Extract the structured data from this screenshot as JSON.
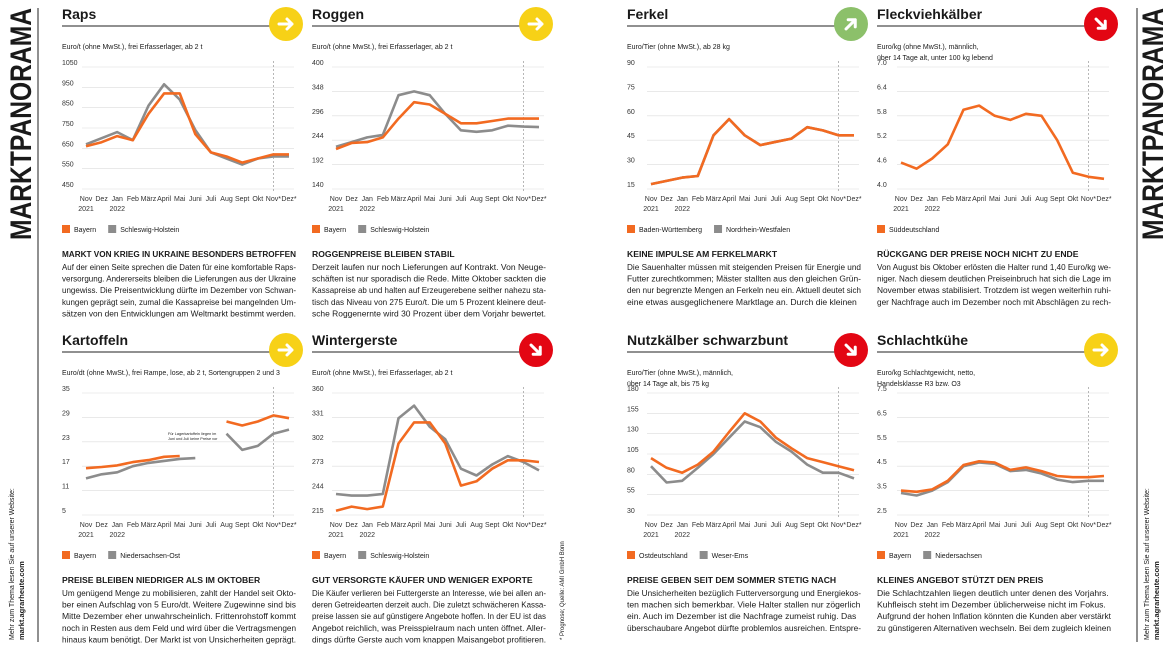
{
  "spine_title": "MARKTPANORAMA",
  "website_note": "Mehr zum Thema lesen Sie auf unserer Website:",
  "website": "markt.agrarheute.com",
  "source": "* Prognose; Quelle: AMI GmbH Bonn",
  "chart_data": [
    {
      "type": "line",
      "title": "Raps",
      "subtitle": [
        "Euro/t (ohne MwSt.), frei Erfasserlager, ab 2 t"
      ],
      "categories": [
        "Nov 2021",
        "Dez",
        "Jan 2022",
        "Feb",
        "März",
        "April",
        "Mai",
        "Juni",
        "Juli",
        "Aug",
        "Sept",
        "Okt",
        "Nov*",
        "Dez*"
      ],
      "series": [
        {
          "name": "Schleswig-Holstein",
          "color": "#8c8c8c",
          "values": [
            670,
            700,
            730,
            690,
            860,
            965,
            890,
            740,
            630,
            600,
            570,
            600,
            610,
            610
          ]
        },
        {
          "name": "Bayern",
          "color": "#f26a21",
          "values": [
            660,
            680,
            710,
            690,
            820,
            920,
            920,
            720,
            630,
            610,
            580,
            600,
            620,
            620
          ]
        }
      ],
      "ylim": [
        450,
        1050
      ],
      "yticks": [
        450,
        550,
        650,
        750,
        850,
        950,
        1050
      ],
      "grid": true,
      "headline": "MARKT VON KRIEG IN UKRAINE BESONDERS BETROFFEN",
      "body": [
        "Auf der einen Seite sprechen die Daten für eine komfortable Raps-",
        "versorgung. Andererseits bleiben die Lieferungen aus der Ukraine",
        "ungewiss. Die Preisentwicklung dürfte im Dezember von Schwan-",
        "kungen geprägt sein, zumal die Kassapreise bei mangelnden Um-",
        "sätzen von den Entwicklungen am Weltmarkt bestimmt werden."
      ]
    },
    {
      "type": "line",
      "title": "Roggen",
      "subtitle": [
        "Euro/t (ohne MwSt.), frei Erfasserlager, ab 2 t"
      ],
      "categories": [
        "Nov 2021",
        "Dez",
        "Jan 2022",
        "Feb",
        "März",
        "April",
        "Mai",
        "Juni",
        "Juli",
        "Aug",
        "Sept",
        "Okt",
        "Nov*",
        "Dez*"
      ],
      "series": [
        {
          "name": "Schleswig-Holstein",
          "color": "#8c8c8c",
          "values": [
            230,
            240,
            250,
            255,
            340,
            348,
            340,
            300,
            265,
            262,
            265,
            275,
            273,
            272
          ]
        },
        {
          "name": "Bayern",
          "color": "#f26a21",
          "values": [
            225,
            238,
            240,
            250,
            290,
            325,
            320,
            300,
            280,
            280,
            285,
            290,
            290,
            290
          ]
        }
      ],
      "ylim": [
        140,
        400
      ],
      "yticks": [
        140,
        192,
        244,
        296,
        348,
        400
      ],
      "grid": true,
      "headline": "ROGGENPREISE BLEIBEN STABIL",
      "body": [
        "Derzeit laufen nur noch Lieferungen auf Kontrakt. Von Neuge-",
        "schäften ist nur sporadisch die Rede. Mitte Oktober sackten die",
        "Kassapreise ab und halten auf Erzeugerebene seither nahezu sta-",
        "tisch das Niveau von 275 Euro/t. Die um 5 Prozent kleinere deut-",
        "sche Roggenernte wird 30 Prozent über dem Vorjahr bewertet."
      ]
    },
    {
      "type": "line",
      "title": "Ferkel",
      "subtitle": [
        "Euro/Tier (ohne MwSt.), ab 28 kg"
      ],
      "categories": [
        "Nov 2021",
        "Dez",
        "Jan 2022",
        "Feb",
        "März",
        "April",
        "Mai",
        "Juni",
        "Juli",
        "Aug",
        "Sept",
        "Okt",
        "Nov*",
        "Dez*"
      ],
      "series": [
        {
          "name": "Nordrhein-Westfalen",
          "color": "#8c8c8c",
          "values": [
            18,
            20,
            22,
            23,
            48,
            58,
            48,
            42,
            44,
            46,
            53,
            51,
            48,
            48
          ]
        },
        {
          "name": "Baden-Württemberg",
          "color": "#f26a21",
          "values": [
            18,
            20,
            22,
            23,
            48,
            58,
            48,
            42,
            44,
            46,
            53,
            51,
            48,
            48
          ]
        }
      ],
      "ylim": [
        15,
        90
      ],
      "yticks": [
        15,
        30,
        45,
        60,
        75,
        90
      ],
      "grid": true,
      "headline": "KEINE IMPULSE AM FERKELMARKT",
      "body": [
        "Die Sauenhalter müssen mit steigenden Preisen für Energie und",
        "Futter zurechtkommen; Mäster stallten aus den gleichen Grün-",
        "den nur begrenzte Mengen an Ferkeln neu ein. Aktuell deutet sich",
        "eine etwas ausgeglichenere Marktlage an. Durch die kleinen"
      ]
    },
    {
      "type": "line",
      "title": "Fleckviehkälber",
      "subtitle": [
        "Euro/kg (ohne MwSt.), männlich,",
        "über 14 Tage alt, unter 100 kg lebend"
      ],
      "categories": [
        "Nov 2021",
        "Dez",
        "Jan 2022",
        "Feb",
        "März",
        "April",
        "Mai",
        "Juni",
        "Juli",
        "Aug",
        "Sept",
        "Okt",
        "Nov*",
        "Dez*"
      ],
      "series": [
        {
          "name": "Süddeutschland",
          "color": "#f26a21",
          "values": [
            4.65,
            4.5,
            4.75,
            5.1,
            5.95,
            6.05,
            5.8,
            5.7,
            5.85,
            5.8,
            5.2,
            4.4,
            4.3,
            4.25
          ]
        }
      ],
      "ylim": [
        4,
        7
      ],
      "yticks": [
        {
          "value": 4,
          "label": "4.0"
        },
        4.6,
        5.2,
        5.8,
        6.4,
        {
          "value": 7,
          "label": "7.0"
        }
      ],
      "grid": true,
      "headline": "RÜCKGANG DER PREISE NOCH NICHT ZU ENDE",
      "body": [
        "Von August bis Oktober erlösten die Halter rund 1,40 Euro/kg we-",
        "niger. Nach diesem deutlichen Preiseinbruch hat sich die Lage im",
        "November etwas stabilisiert. Trotzdem ist wegen weiterhin ruhi-",
        "ger Nachfrage auch im Dezember noch mit Abschlägen zu rech-"
      ]
    },
    {
      "type": "line",
      "title": "Kartoffeln",
      "subtitle": [
        "Euro/dt (ohne MwSt.), frei Rampe, lose, ab 2 t, Sortengruppen 2 und 3"
      ],
      "categories": [
        "Nov 2021",
        "Dez",
        "Jan 2022",
        "Feb",
        "März",
        "April",
        "Mai",
        "Juni",
        "Juli",
        "Aug",
        "Sept",
        "Okt",
        "Nov*",
        "Dez*"
      ],
      "series": [
        {
          "name": "Niedersachsen-Ost",
          "color": "#8c8c8c",
          "values": [
            14,
            15,
            15.5,
            17,
            17.8,
            18.3,
            18.8,
            19,
            null,
            25,
            21,
            22,
            25,
            26
          ]
        },
        {
          "name": "Bayern",
          "color": "#f26a21",
          "values": [
            16.5,
            16.8,
            17.2,
            18,
            18.5,
            19.3,
            19.5,
            null,
            null,
            28,
            27,
            28,
            29.5,
            28.8
          ]
        }
      ],
      "ylim": [
        5,
        35
      ],
      "yticks": [
        5,
        11,
        17,
        23,
        29,
        35
      ],
      "grid": true,
      "annotation": [
        "Für Lagerkartoffeln liegen im",
        "Juni und Juli keine Preise vor"
      ],
      "headline": "PREISE BLEIBEN NIEDRIGER ALS IM OKTOBER",
      "body": [
        "Um genügend Menge zu mobilisieren, zahlt der Handel seit Okto-",
        "ber einen Aufschlag von 5 Euro/dt. Weitere Zugewinne sind bis",
        "Mitte Dezember eher unwahrscheinlich. Frittenrohstoff kommt",
        "noch in Resten aus dem Feld und wird über die Vertragsmengen",
        "hinaus kaum benötigt. Der Markt ist von Unsicherheiten geprägt."
      ]
    },
    {
      "type": "line",
      "title": "Wintergerste",
      "subtitle": [
        "Euro/t (ohne MwSt.), frei Erfasserlager, ab 2 t"
      ],
      "categories": [
        "Nov 2021",
        "Dez",
        "Jan 2022",
        "Feb",
        "März",
        "April",
        "Mai",
        "Juni",
        "Juli",
        "Aug",
        "Sept",
        "Okt",
        "Nov*",
        "Dez*"
      ],
      "series": [
        {
          "name": "Schleswig-Holstein",
          "color": "#8c8c8c",
          "values": [
            240,
            238,
            238,
            240,
            330,
            345,
            320,
            305,
            270,
            262,
            275,
            285,
            278,
            268
          ]
        },
        {
          "name": "Bayern",
          "color": "#f26a21",
          "values": [
            220,
            225,
            222,
            225,
            300,
            325,
            325,
            300,
            250,
            255,
            270,
            280,
            280,
            278
          ]
        }
      ],
      "ylim": [
        215,
        360
      ],
      "yticks": [
        215,
        244,
        273,
        302,
        331,
        360
      ],
      "grid": true,
      "headline": "GUT VERSORGTE KÄUFER UND WENIGER EXPORTE",
      "body": [
        "Die Käufer verlieren bei Futtergerste an Interesse, wie bei allen an-",
        "deren Getreidearten derzeit auch. Die zuletzt schwächeren Kassa-",
        "preise lassen sie auf günstigere Angebote hoffen. In der EU ist das",
        "Angebot reichlich, was Preisspielraum nach unten öffnet. Aller-",
        "dings dürfte Gerste auch vom knappen Maisangebot profitieren."
      ]
    },
    {
      "type": "line",
      "title": "Nutzkälber schwarzbunt",
      "subtitle": [
        "Euro/Tier (ohne MwSt.), männlich,",
        "über 14 Tage alt, bis 75 kg"
      ],
      "categories": [
        "Nov 2021",
        "Dez",
        "Jan 2022",
        "Feb",
        "März",
        "April",
        "Mai",
        "Juni",
        "Juli",
        "Aug",
        "Sept",
        "Okt",
        "Nov*",
        "Dez*"
      ],
      "series": [
        {
          "name": "Weser-Ems",
          "color": "#8c8c8c",
          "values": [
            90,
            70,
            72,
            88,
            105,
            125,
            145,
            138,
            120,
            108,
            92,
            82,
            82,
            75
          ]
        },
        {
          "name": "Ostdeutschland",
          "color": "#f26a21",
          "values": [
            100,
            88,
            82,
            92,
            108,
            132,
            155,
            145,
            125,
            112,
            100,
            95,
            90,
            85
          ]
        }
      ],
      "ylim": [
        30,
        180
      ],
      "yticks": [
        30,
        55,
        80,
        105,
        130,
        155,
        180
      ],
      "grid": true,
      "headline": "PREISE GEBEN SEIT DEM SOMMER STETIG NACH",
      "body": [
        "Die Unsicherheiten bezüglich Futterversorgung und Energiekos-",
        "ten machen sich bemerkbar. Viele Halter stallen nur zögerlich",
        "ein. Auch im Dezember ist die Nachfrage zumeist ruhig. Das",
        "überschaubare Angebot dürfte problemlos ausreichen. Entspre-"
      ]
    },
    {
      "type": "line",
      "title": "Schlachtkühe",
      "subtitle": [
        "Euro/kg Schlachtgewicht, netto,",
        "Handelsklasse R3 bzw. O3"
      ],
      "categories": [
        "Nov 2021",
        "Dez",
        "Jan 2022",
        "Feb",
        "März",
        "April",
        "Mai",
        "Juni",
        "Juli",
        "Aug",
        "Sept",
        "Okt",
        "Nov*",
        "Dez*"
      ],
      "series": [
        {
          "name": "Niedersachsen",
          "color": "#8c8c8c",
          "values": [
            3.4,
            3.3,
            3.5,
            3.85,
            4.5,
            4.65,
            4.6,
            4.3,
            4.35,
            4.2,
            3.95,
            3.85,
            3.9,
            3.9
          ]
        },
        {
          "name": "Bayern",
          "color": "#f26a21",
          "values": [
            3.5,
            3.45,
            3.55,
            3.9,
            4.55,
            4.7,
            4.65,
            4.35,
            4.45,
            4.3,
            4.1,
            4.05,
            4.05,
            4.1
          ]
        }
      ],
      "ylim": [
        2.5,
        7.5
      ],
      "yticks": [
        2.5,
        3.5,
        4.5,
        5.5,
        6.5,
        7.5
      ],
      "grid": true,
      "headline": "KLEINES ANGEBOT STÜTZT DEN PREIS",
      "body": [
        "Die Schlachtzahlen liegen deutlich unter denen des Vorjahrs.",
        "Kuhfleisch steht im Dezember üblicherweise nicht im Fokus.",
        "Aufgrund der hohen Inflation könnten die Kunden aber verstärkt",
        "zu günstigeren Alternativen wechseln. Bei dem zugleich kleinen"
      ]
    }
  ]
}
